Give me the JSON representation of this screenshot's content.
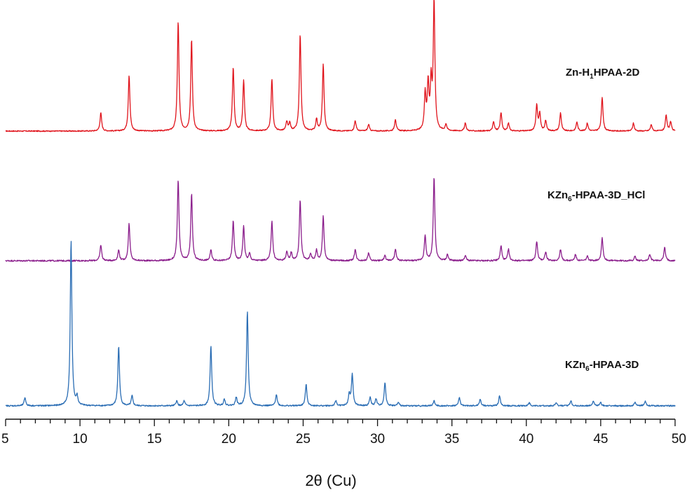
{
  "chart_data": {
    "type": "line",
    "xlabel": "2θ (Cu)",
    "ylabel": "",
    "xlim": [
      5,
      50
    ],
    "xticks": [
      "5",
      "10",
      "15",
      "20",
      "25",
      "30",
      "35",
      "40",
      "45",
      "50"
    ],
    "grid": false,
    "legend": "none",
    "series": [
      {
        "name_parts": [
          "Zn-H",
          "1",
          "HPAA-2D"
        ],
        "color": "#e0141c",
        "peaks": [
          [
            11.4,
            0.14
          ],
          [
            13.3,
            0.43
          ],
          [
            16.6,
            0.84
          ],
          [
            17.5,
            0.7
          ],
          [
            20.3,
            0.49
          ],
          [
            21.0,
            0.39
          ],
          [
            22.9,
            0.4
          ],
          [
            23.9,
            0.07
          ],
          [
            24.1,
            0.06
          ],
          [
            24.8,
            0.74
          ],
          [
            25.9,
            0.09
          ],
          [
            26.35,
            0.51
          ],
          [
            28.5,
            0.08
          ],
          [
            29.4,
            0.05
          ],
          [
            31.2,
            0.09
          ],
          [
            33.2,
            0.28
          ],
          [
            33.4,
            0.35
          ],
          [
            33.6,
            0.35
          ],
          [
            33.8,
            0.99
          ],
          [
            34.6,
            0.05
          ],
          [
            35.9,
            0.06
          ],
          [
            37.8,
            0.07
          ],
          [
            38.3,
            0.14
          ],
          [
            38.8,
            0.06
          ],
          [
            40.7,
            0.2
          ],
          [
            40.9,
            0.13
          ],
          [
            41.3,
            0.08
          ],
          [
            42.3,
            0.14
          ],
          [
            43.4,
            0.07
          ],
          [
            44.1,
            0.06
          ],
          [
            45.1,
            0.26
          ],
          [
            47.2,
            0.06
          ],
          [
            48.4,
            0.05
          ],
          [
            49.4,
            0.12
          ],
          [
            49.7,
            0.07
          ]
        ]
      },
      {
        "name_parts": [
          "KZn",
          "6",
          "-HPAA-3D_HCl"
        ],
        "color": "#8b1e8c",
        "peaks": [
          [
            11.4,
            0.18
          ],
          [
            12.6,
            0.12
          ],
          [
            13.3,
            0.42
          ],
          [
            16.6,
            0.92
          ],
          [
            17.5,
            0.76
          ],
          [
            18.8,
            0.12
          ],
          [
            20.3,
            0.45
          ],
          [
            21.0,
            0.39
          ],
          [
            21.4,
            0.08
          ],
          [
            22.9,
            0.45
          ],
          [
            23.9,
            0.1
          ],
          [
            24.2,
            0.09
          ],
          [
            24.8,
            0.69
          ],
          [
            25.5,
            0.08
          ],
          [
            25.9,
            0.12
          ],
          [
            26.35,
            0.5
          ],
          [
            28.5,
            0.13
          ],
          [
            29.4,
            0.09
          ],
          [
            30.5,
            0.06
          ],
          [
            31.2,
            0.13
          ],
          [
            33.2,
            0.28
          ],
          [
            33.8,
            0.95
          ],
          [
            34.7,
            0.07
          ],
          [
            35.9,
            0.06
          ],
          [
            38.3,
            0.17
          ],
          [
            38.8,
            0.13
          ],
          [
            40.7,
            0.22
          ],
          [
            41.3,
            0.1
          ],
          [
            42.3,
            0.13
          ],
          [
            43.3,
            0.07
          ],
          [
            44.1,
            0.05
          ],
          [
            45.1,
            0.26
          ],
          [
            47.3,
            0.05
          ],
          [
            48.3,
            0.07
          ],
          [
            49.3,
            0.15
          ]
        ]
      },
      {
        "name_parts": [
          "KZn",
          "6",
          "-HPAA-3D"
        ],
        "color": "#2a6db4",
        "peaks": [
          [
            6.3,
            0.05
          ],
          [
            9.4,
            1.0
          ],
          [
            9.8,
            0.05
          ],
          [
            12.6,
            0.36
          ],
          [
            13.5,
            0.06
          ],
          [
            16.5,
            0.03
          ],
          [
            17.0,
            0.03
          ],
          [
            18.8,
            0.36
          ],
          [
            19.7,
            0.04
          ],
          [
            20.5,
            0.05
          ],
          [
            21.25,
            0.57
          ],
          [
            23.2,
            0.07
          ],
          [
            25.2,
            0.13
          ],
          [
            27.2,
            0.03
          ],
          [
            28.1,
            0.07
          ],
          [
            28.3,
            0.19
          ],
          [
            29.5,
            0.05
          ],
          [
            29.9,
            0.04
          ],
          [
            30.5,
            0.14
          ],
          [
            31.4,
            0.02
          ],
          [
            33.8,
            0.03
          ],
          [
            35.5,
            0.05
          ],
          [
            36.9,
            0.04
          ],
          [
            38.2,
            0.06
          ],
          [
            40.2,
            0.02
          ],
          [
            42.0,
            0.02
          ],
          [
            43.0,
            0.03
          ],
          [
            44.5,
            0.03
          ],
          [
            45.0,
            0.02
          ],
          [
            47.3,
            0.02
          ],
          [
            48.0,
            0.03
          ]
        ]
      }
    ]
  }
}
